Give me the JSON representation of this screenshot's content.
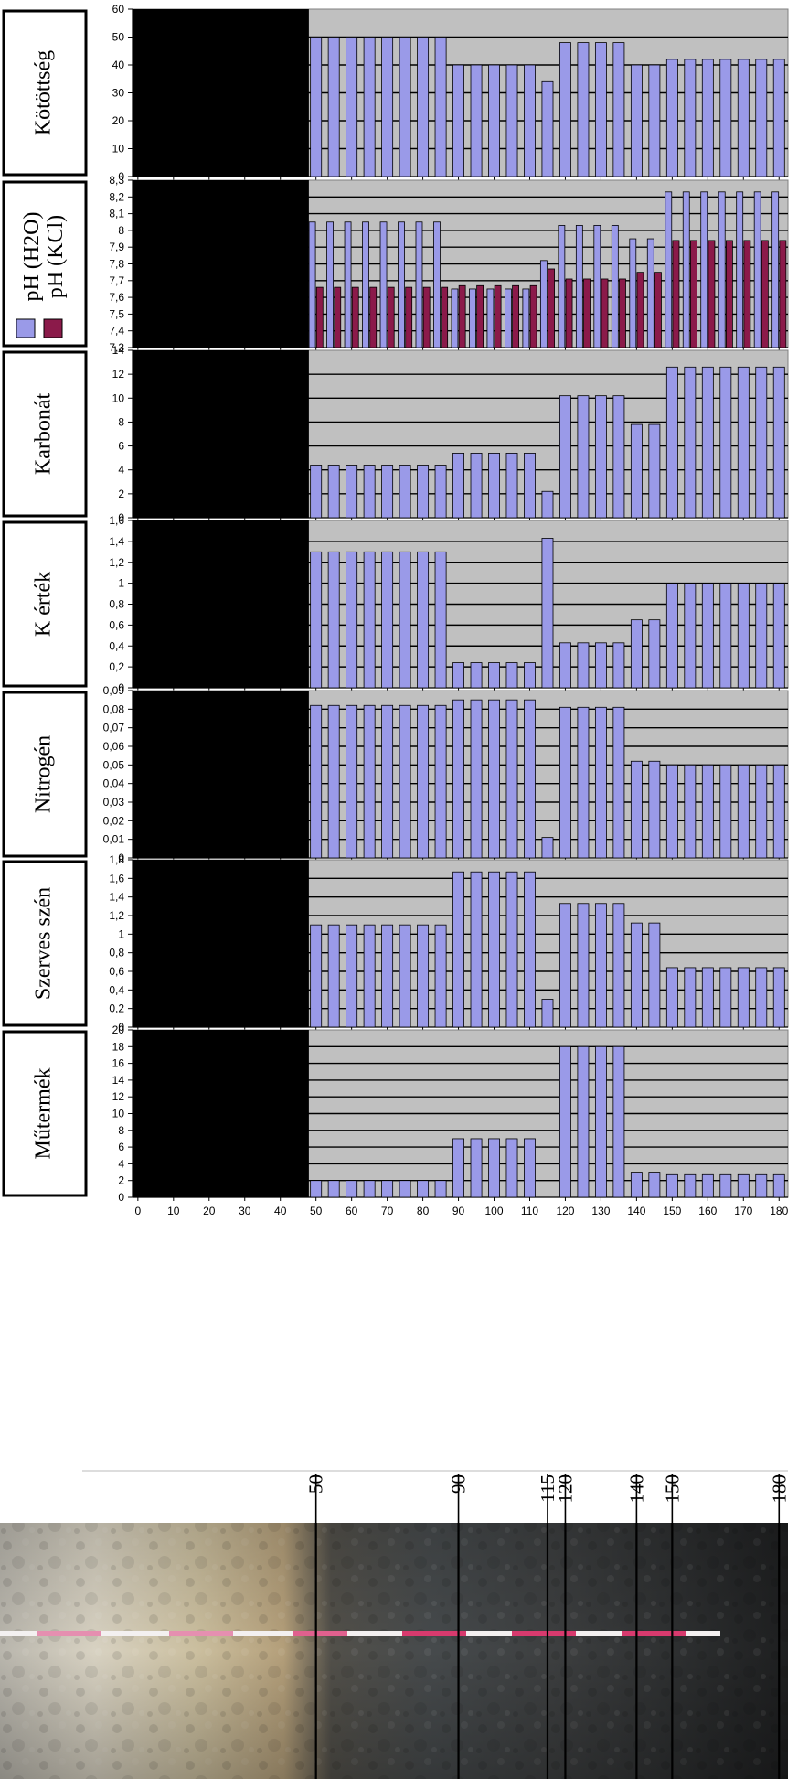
{
  "colors": {
    "plot_background": "#c0c0c0",
    "h2o_bar": "#9a9ae8",
    "kcl_bar": "#8b1a4a",
    "masked_region": "#000000"
  },
  "chart_data": [
    {
      "type": "bar",
      "ylabel": "Kötöttség",
      "ylim": [
        0,
        60
      ],
      "yticks": [
        "0",
        "10",
        "20",
        "30",
        "40",
        "50",
        "60"
      ],
      "xticks": [
        "0",
        "10",
        "20",
        "30",
        "40",
        "50",
        "60",
        "70",
        "80",
        "90",
        "100",
        "110",
        "120",
        "130",
        "140",
        "150",
        "160",
        "170",
        "180"
      ],
      "x": [
        50,
        55,
        60,
        65,
        70,
        75,
        80,
        85,
        90,
        95,
        100,
        105,
        110,
        115,
        120,
        125,
        130,
        135,
        140,
        145,
        150,
        155,
        160,
        165,
        170,
        175,
        180
      ],
      "series": [
        {
          "values": [
            50,
            50,
            50,
            50,
            50,
            50,
            50,
            50,
            40,
            40,
            40,
            40,
            40,
            34,
            48,
            48,
            48,
            48,
            40,
            40,
            42,
            42,
            42,
            42,
            42,
            42,
            42
          ]
        }
      ],
      "masked_x_range": [
        0,
        48
      ]
    },
    {
      "type": "bar",
      "ylabel": "pH (H2O)  pH (KCl)",
      "legend": [
        "pH (H2O)",
        "pH (KCl)"
      ],
      "ylim": [
        7.3,
        8.3
      ],
      "yticks": [
        "7,3",
        "7,4",
        "7,5",
        "7,6",
        "7,7",
        "7,8",
        "7,9",
        "8",
        "8,1",
        "8,2",
        "8,3"
      ],
      "xticks": [
        "0",
        "10",
        "20",
        "30",
        "40",
        "50",
        "60",
        "70",
        "80",
        "90",
        "100",
        "110",
        "120",
        "130",
        "140",
        "150",
        "160",
        "170",
        "180"
      ],
      "x": [
        50,
        55,
        60,
        65,
        70,
        75,
        80,
        85,
        90,
        95,
        100,
        105,
        110,
        115,
        120,
        125,
        130,
        135,
        140,
        145,
        150,
        155,
        160,
        165,
        170,
        175,
        180
      ],
      "series": [
        {
          "values": [
            8.05,
            8.05,
            8.05,
            8.05,
            8.05,
            8.05,
            8.05,
            8.05,
            7.65,
            7.65,
            7.65,
            7.65,
            7.65,
            7.82,
            8.03,
            8.03,
            8.03,
            8.03,
            7.95,
            7.95,
            8.23,
            8.23,
            8.23,
            8.23,
            8.23,
            8.23,
            8.23
          ]
        },
        {
          "values": [
            7.66,
            7.66,
            7.66,
            7.66,
            7.66,
            7.66,
            7.66,
            7.66,
            7.67,
            7.67,
            7.67,
            7.67,
            7.67,
            7.77,
            7.71,
            7.71,
            7.71,
            7.71,
            7.75,
            7.75,
            7.94,
            7.94,
            7.94,
            7.94,
            7.94,
            7.94,
            7.94
          ]
        }
      ],
      "masked_x_range": [
        0,
        48
      ]
    },
    {
      "type": "bar",
      "ylabel": "Karbonát",
      "ylim": [
        0,
        14
      ],
      "yticks": [
        "0",
        "2",
        "4",
        "6",
        "8",
        "10",
        "12",
        "14"
      ],
      "xticks": [
        "0",
        "10",
        "20",
        "30",
        "40",
        "50",
        "60",
        "70",
        "80",
        "90",
        "100",
        "110",
        "120",
        "130",
        "140",
        "150",
        "160",
        "170",
        "180"
      ],
      "x": [
        50,
        55,
        60,
        65,
        70,
        75,
        80,
        85,
        90,
        95,
        100,
        105,
        110,
        115,
        120,
        125,
        130,
        135,
        140,
        145,
        150,
        155,
        160,
        165,
        170,
        175,
        180
      ],
      "series": [
        {
          "values": [
            4.4,
            4.4,
            4.4,
            4.4,
            4.4,
            4.4,
            4.4,
            4.4,
            5.4,
            5.4,
            5.4,
            5.4,
            5.4,
            2.2,
            10.2,
            10.2,
            10.2,
            10.2,
            7.8,
            7.8,
            12.6,
            12.6,
            12.6,
            12.6,
            12.6,
            12.6,
            12.6
          ]
        }
      ],
      "masked_x_range": [
        0,
        48
      ]
    },
    {
      "type": "bar",
      "ylabel": "K érték",
      "ylim": [
        0,
        1.6
      ],
      "yticks": [
        "0",
        "0,2",
        "0,4",
        "0,6",
        "0,8",
        "1",
        "1,2",
        "1,4",
        "1,6"
      ],
      "xticks": [
        "0",
        "10",
        "20",
        "30",
        "40",
        "50",
        "60",
        "70",
        "80",
        "90",
        "100",
        "110",
        "120",
        "130",
        "140",
        "150",
        "160",
        "170",
        "180"
      ],
      "x": [
        50,
        55,
        60,
        65,
        70,
        75,
        80,
        85,
        90,
        95,
        100,
        105,
        110,
        115,
        120,
        125,
        130,
        135,
        140,
        145,
        150,
        155,
        160,
        165,
        170,
        175,
        180
      ],
      "series": [
        {
          "values": [
            1.3,
            1.3,
            1.3,
            1.3,
            1.3,
            1.3,
            1.3,
            1.3,
            0.24,
            0.24,
            0.24,
            0.24,
            0.24,
            1.43,
            0.43,
            0.43,
            0.43,
            0.43,
            0.65,
            0.65,
            1.0,
            1.0,
            1.0,
            1.0,
            1.0,
            1.0,
            1.0
          ]
        }
      ],
      "masked_x_range": [
        0,
        48
      ]
    },
    {
      "type": "bar",
      "ylabel": "Nitrogén",
      "ylim": [
        0,
        0.09
      ],
      "yticks": [
        "0",
        "0,01",
        "0,02",
        "0,03",
        "0,04",
        "0,05",
        "0,06",
        "0,07",
        "0,08",
        "0,09"
      ],
      "xticks": [
        "0",
        "10",
        "20",
        "30",
        "40",
        "50",
        "60",
        "70",
        "80",
        "90",
        "100",
        "110",
        "120",
        "130",
        "140",
        "150",
        "160",
        "170",
        "180"
      ],
      "x": [
        50,
        55,
        60,
        65,
        70,
        75,
        80,
        85,
        90,
        95,
        100,
        105,
        110,
        115,
        120,
        125,
        130,
        135,
        140,
        145,
        150,
        155,
        160,
        165,
        170,
        175,
        180
      ],
      "series": [
        {
          "values": [
            0.082,
            0.082,
            0.082,
            0.082,
            0.082,
            0.082,
            0.082,
            0.082,
            0.085,
            0.085,
            0.085,
            0.085,
            0.085,
            0.011,
            0.081,
            0.081,
            0.081,
            0.081,
            0.052,
            0.052,
            0.05,
            0.05,
            0.05,
            0.05,
            0.05,
            0.05,
            0.05
          ]
        }
      ],
      "masked_x_range": [
        0,
        48
      ]
    },
    {
      "type": "bar",
      "ylabel": "Szerves szén",
      "ylim": [
        0,
        1.8
      ],
      "yticks": [
        "0",
        "0,2",
        "0,4",
        "0,6",
        "0,8",
        "1",
        "1,2",
        "1,4",
        "1,6",
        "1,8"
      ],
      "xticks": [
        "0",
        "10",
        "20",
        "30",
        "40",
        "50",
        "60",
        "70",
        "80",
        "90",
        "100",
        "110",
        "120",
        "130",
        "140",
        "150",
        "160",
        "170",
        "180"
      ],
      "x": [
        50,
        55,
        60,
        65,
        70,
        75,
        80,
        85,
        90,
        95,
        100,
        105,
        110,
        115,
        120,
        125,
        130,
        135,
        140,
        145,
        150,
        155,
        160,
        165,
        170,
        175,
        180
      ],
      "series": [
        {
          "values": [
            1.1,
            1.1,
            1.1,
            1.1,
            1.1,
            1.1,
            1.1,
            1.1,
            1.67,
            1.67,
            1.67,
            1.67,
            1.67,
            0.3,
            1.33,
            1.33,
            1.33,
            1.33,
            1.12,
            1.12,
            0.64,
            0.64,
            0.64,
            0.64,
            0.64,
            0.64,
            0.64
          ]
        }
      ],
      "masked_x_range": [
        0,
        48
      ]
    },
    {
      "type": "bar",
      "ylabel": "Műtermék",
      "ylim": [
        0,
        20
      ],
      "yticks": [
        "0",
        "2",
        "4",
        "6",
        "8",
        "10",
        "12",
        "14",
        "16",
        "18",
        "20"
      ],
      "xticks": [
        "0",
        "10",
        "20",
        "30",
        "40",
        "50",
        "60",
        "70",
        "80",
        "90",
        "100",
        "110",
        "120",
        "130",
        "140",
        "150",
        "160",
        "170",
        "180"
      ],
      "x": [
        50,
        55,
        60,
        65,
        70,
        75,
        80,
        85,
        90,
        95,
        100,
        105,
        110,
        115,
        120,
        125,
        130,
        135,
        140,
        145,
        150,
        155,
        160,
        165,
        170,
        175,
        180
      ],
      "series": [
        {
          "values": [
            2,
            2,
            2,
            2,
            2,
            2,
            2,
            2,
            7,
            7,
            7,
            7,
            7,
            0,
            18,
            18,
            18,
            18,
            3,
            3,
            2.7,
            2.7,
            2.7,
            2.7,
            2.7,
            2.7,
            2.7
          ]
        }
      ],
      "masked_x_range": [
        0,
        48
      ]
    }
  ],
  "profile": {
    "depth_markers": [
      "50",
      "90",
      "115",
      "120",
      "140",
      "150",
      "180"
    ]
  }
}
